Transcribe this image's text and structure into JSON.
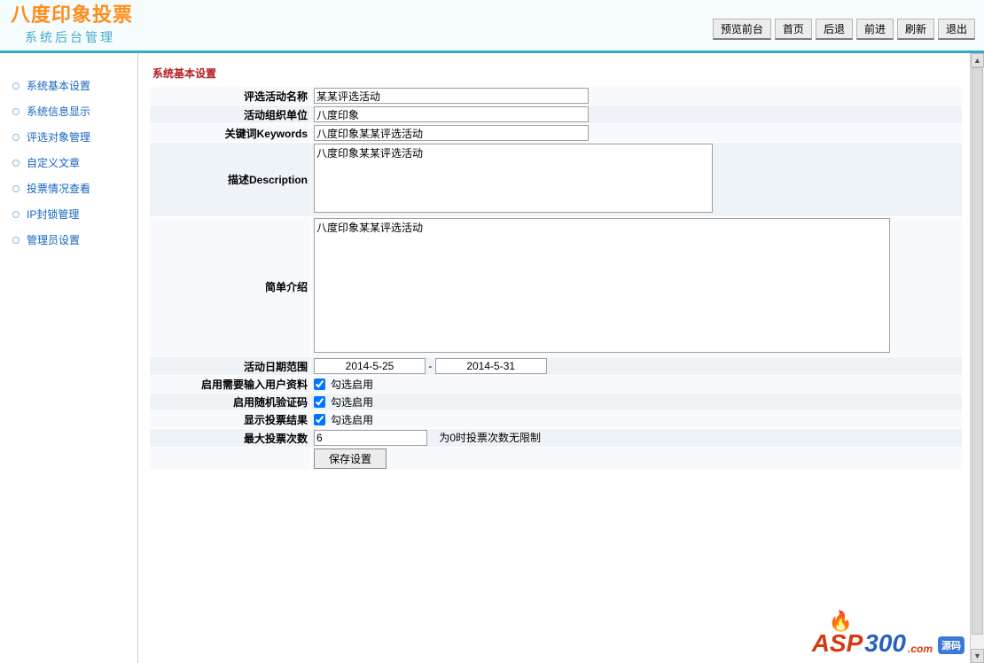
{
  "header": {
    "title": "八度印象投票",
    "subtitle": "系统后台管理",
    "buttons": {
      "preview": "预览前台",
      "home": "首页",
      "back": "后退",
      "forward": "前进",
      "refresh": "刷新",
      "logout": "退出"
    }
  },
  "sidebar": {
    "items": [
      "系统基本设置",
      "系统信息显示",
      "评选对象管理",
      "自定义文章",
      "投票情况查看",
      "IP封锁管理",
      "管理员设置"
    ]
  },
  "panel": {
    "title": "系统基本设置",
    "labels": {
      "event_name": "评选活动名称",
      "organizer": "活动组织单位",
      "keywords": "关键词Keywords",
      "description": "描述Description",
      "intro": "简单介绍",
      "date_range": "活动日期范围",
      "require_info": "启用需要输入用户资料",
      "captcha": "启用随机验证码",
      "show_result": "显示投票结果",
      "max_votes": "最大投票次数"
    },
    "values": {
      "event_name": "某某评选活动",
      "organizer": "八度印象",
      "keywords": "八度印象某某评选活动",
      "description": "八度印象某某评选活动",
      "intro": "八度印象某某评选活动",
      "date_start": "2014-5-25",
      "date_sep": "-",
      "date_end": "2014-5-31",
      "require_info_checked": true,
      "captcha_checked": true,
      "show_result_checked": true,
      "max_votes": "6",
      "check_label": "勾选启用",
      "max_hint": "为0时投票次数无限制",
      "save": "保存设置"
    }
  },
  "watermark": {
    "asp": "ASP",
    "num": "300",
    "com": ".com",
    "cn": "源码"
  }
}
